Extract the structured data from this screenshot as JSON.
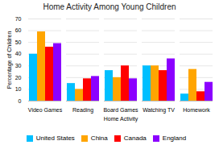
{
  "chart_data": {
    "type": "bar",
    "title": "Home Activity Among Young Children",
    "xlabel": "Home Activity",
    "ylabel": "Percentage of Children",
    "categories": [
      "Video Games",
      "Reading",
      "Board Games",
      "Watching TV",
      "Homework"
    ],
    "series": [
      {
        "name": "United States",
        "color": "#00BFFF",
        "values": [
          40,
          15,
          26,
          30,
          6
        ]
      },
      {
        "name": "China",
        "color": "#FFA500",
        "values": [
          59,
          10,
          20,
          30,
          27
        ]
      },
      {
        "name": "Canada",
        "color": "#FF0000",
        "values": [
          46,
          19,
          30,
          26,
          8
        ]
      },
      {
        "name": "England",
        "color": "#8B00FF",
        "values": [
          49,
          21,
          19,
          36,
          16
        ]
      }
    ],
    "ylim": [
      0,
      70
    ],
    "yticks": [
      0,
      10,
      20,
      30,
      40,
      50,
      60,
      70
    ],
    "grid": true,
    "legend": "bottom"
  }
}
